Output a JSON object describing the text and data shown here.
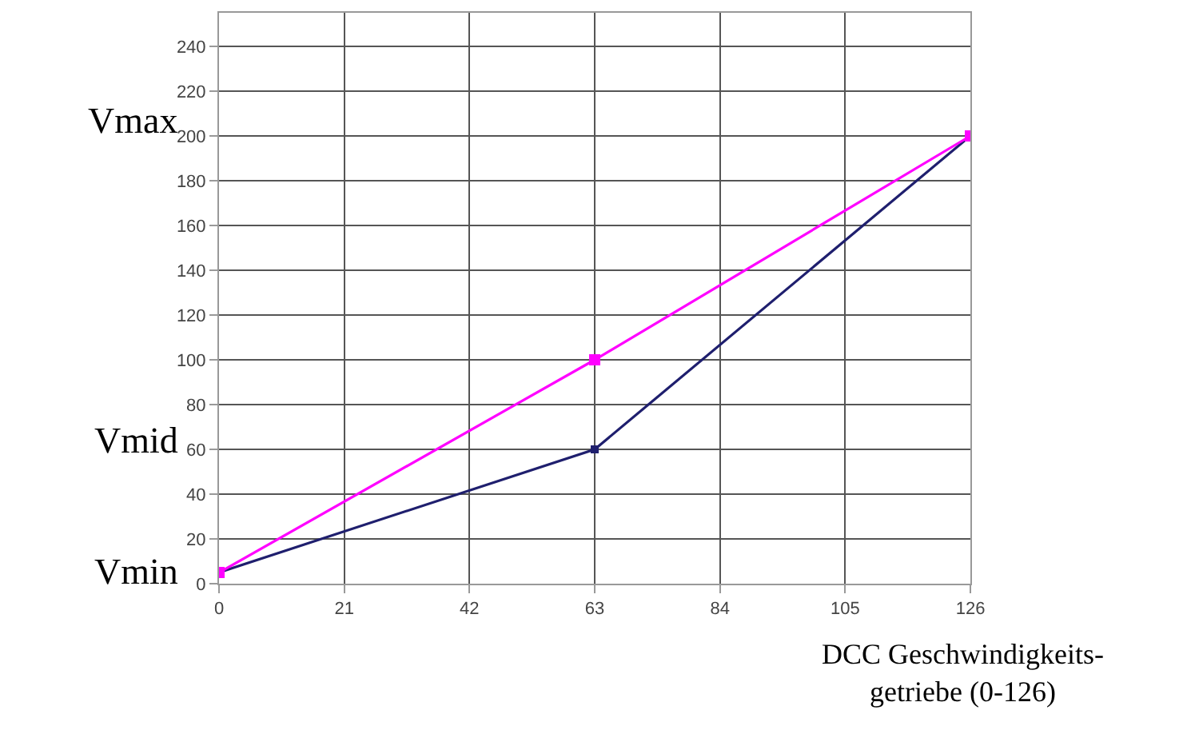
{
  "chart_data": {
    "type": "line",
    "xlabel": "DCC Geschwindigkeits-getriebe (0-126)",
    "x": [
      0,
      63,
      126
    ],
    "series": [
      {
        "color": "#1f1f6e",
        "values": [
          5,
          60,
          200
        ]
      },
      {
        "color": "#ff00ff",
        "values": [
          5,
          100,
          200
        ]
      }
    ],
    "xlim": [
      0,
      126
    ],
    "xticks": [
      0,
      21,
      42,
      63,
      84,
      105,
      126
    ],
    "ylim": [
      0,
      255
    ],
    "yticks": [
      0,
      20,
      40,
      60,
      80,
      100,
      120,
      140,
      160,
      180,
      200,
      220,
      240
    ],
    "grid": true,
    "marker": "square",
    "line_style": "solid",
    "annotations": [
      "Vmax",
      "Vmid",
      "Vmin"
    ]
  }
}
